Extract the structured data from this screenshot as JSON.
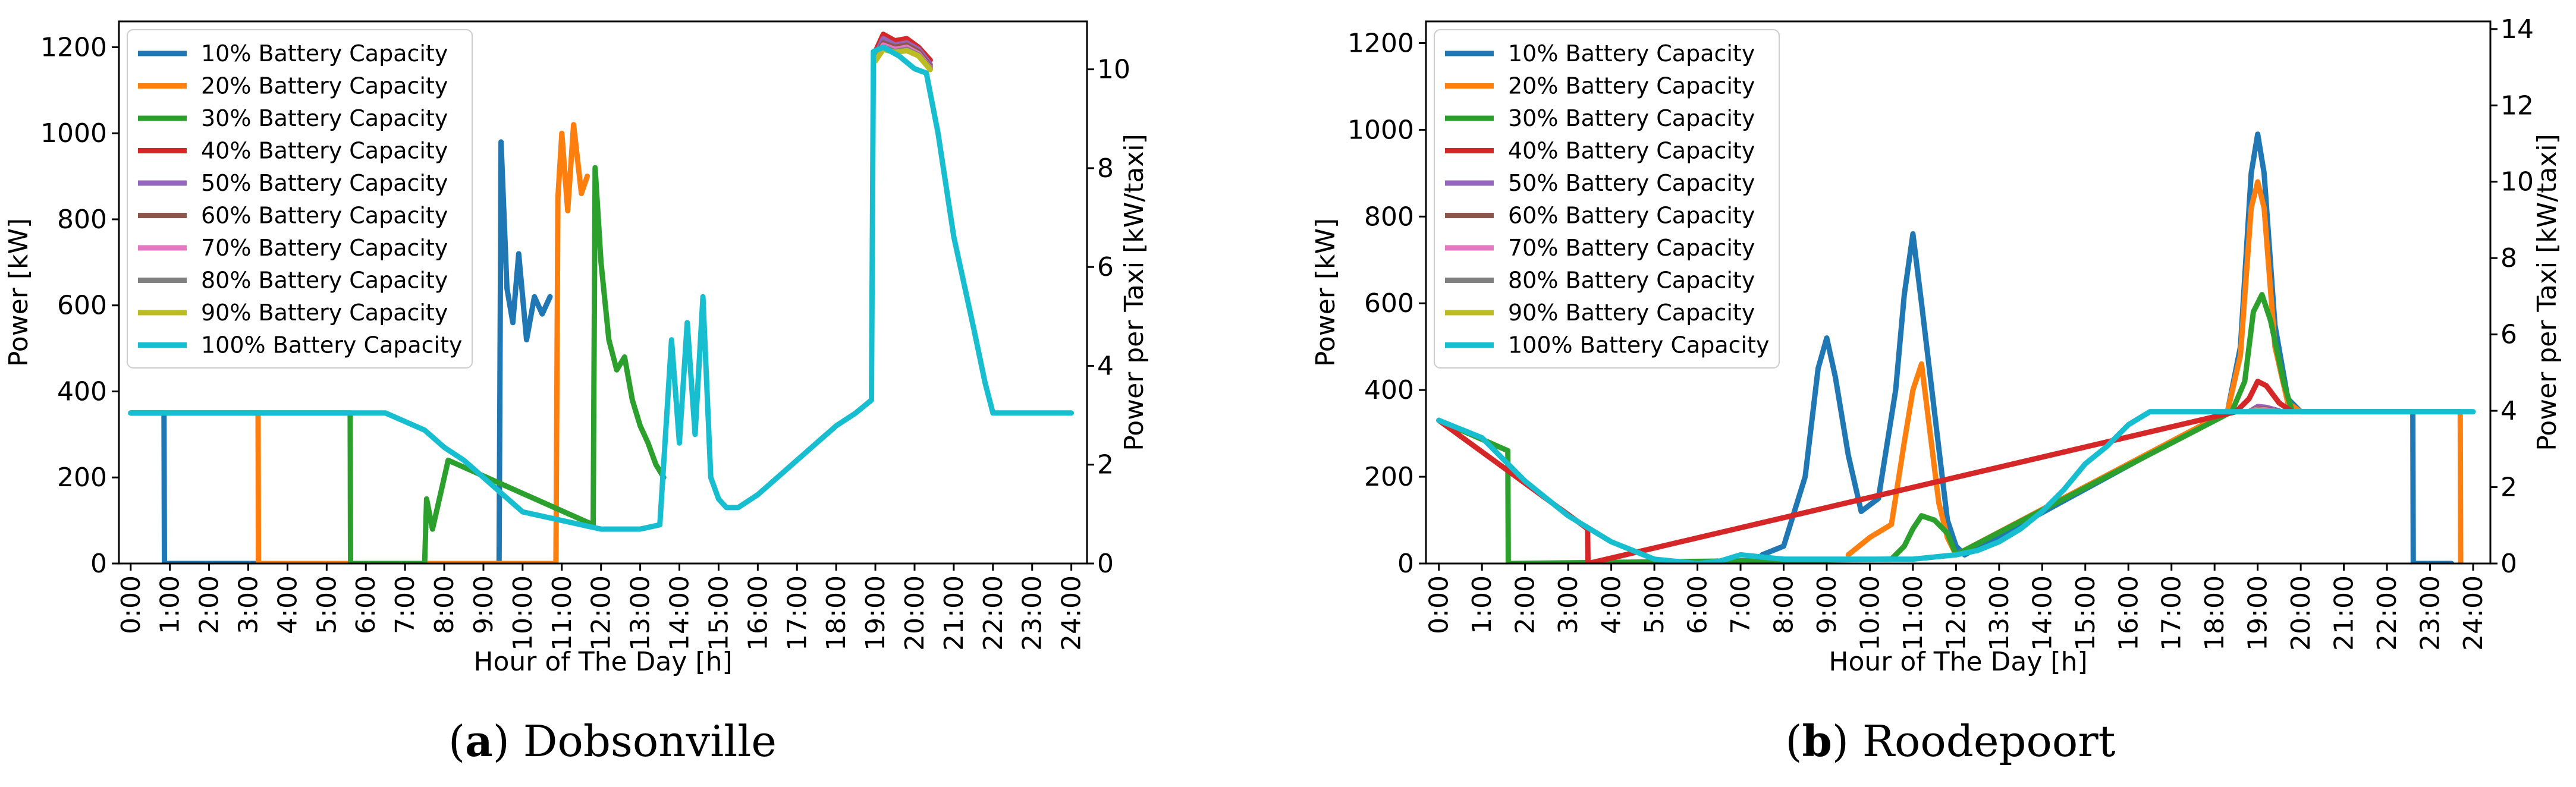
{
  "colors": {
    "10% Battery Capacity": "#1f77b4",
    "20% Battery Capacity": "#ff7f0e",
    "30% Battery Capacity": "#2ca02c",
    "40% Battery Capacity": "#d62728",
    "50% Battery Capacity": "#9467bd",
    "60% Battery Capacity": "#8c564b",
    "70% Battery Capacity": "#e377c2",
    "80% Battery Capacity": "#7f7f7f",
    "90% Battery Capacity": "#bcbd22",
    "100% Battery Capacity": "#17becf"
  },
  "chart_data": [
    {
      "type": "line",
      "caption_letter": "a",
      "caption_name": "Dobsonville",
      "title": "",
      "xlabel": "Hour of The Day [h]",
      "ylabel": "Power [kW]",
      "y2label": "Power per Taxi [kW/taxi]",
      "xlim": [
        -0.3,
        24.4
      ],
      "ylim": [
        0,
        1260
      ],
      "y2lim": [
        0,
        10.97
      ],
      "xticks": [
        "0:00",
        "1:00",
        "2:00",
        "3:00",
        "4:00",
        "5:00",
        "6:00",
        "7:00",
        "8:00",
        "9:00",
        "10:00",
        "11:00",
        "12:00",
        "13:00",
        "14:00",
        "15:00",
        "16:00",
        "17:00",
        "18:00",
        "19:00",
        "20:00",
        "21:00",
        "22:00",
        "23:00",
        "24:00"
      ],
      "yticks": [
        "0",
        "200",
        "400",
        "600",
        "800",
        "1000",
        "1200"
      ],
      "y2ticks": [
        "0",
        "2",
        "4",
        "6",
        "8",
        "10"
      ],
      "legend": "upper-left",
      "series": [
        {
          "name": "10% Battery Capacity",
          "x": [
            0,
            0.85,
            0.86,
            9.4,
            9.45,
            9.6,
            9.75,
            9.9,
            10.1,
            10.3,
            10.5,
            10.7
          ],
          "y": [
            350,
            350,
            0,
            0,
            980,
            640,
            560,
            720,
            520,
            620,
            580,
            620
          ]
        },
        {
          "name": "20% Battery Capacity",
          "x": [
            0,
            3.25,
            3.26,
            10.85,
            10.9,
            11.0,
            11.15,
            11.3,
            11.5,
            11.65
          ],
          "y": [
            350,
            350,
            0,
            0,
            850,
            1000,
            820,
            1020,
            860,
            900
          ]
        },
        {
          "name": "30% Battery Capacity",
          "x": [
            0,
            5.6,
            5.61,
            7.5,
            7.55,
            7.7,
            7.9,
            8.1,
            11.8,
            11.85,
            12.0,
            12.2,
            12.4,
            12.6,
            12.8,
            13.0,
            13.2,
            13.4,
            13.6
          ],
          "y": [
            350,
            350,
            0,
            0,
            150,
            80,
            160,
            240,
            90,
            920,
            700,
            520,
            450,
            480,
            380,
            320,
            280,
            230,
            200
          ]
        },
        {
          "name": "40% Battery Capacity",
          "x": [
            19.0,
            19.2,
            19.5,
            19.8,
            20.1,
            20.4
          ],
          "y": [
            1190,
            1230,
            1215,
            1220,
            1200,
            1170
          ]
        },
        {
          "name": "50% Battery Capacity",
          "x": [
            19.0,
            19.2,
            19.5,
            19.8,
            20.1,
            20.4
          ],
          "y": [
            1180,
            1220,
            1205,
            1210,
            1195,
            1160
          ]
        },
        {
          "name": "60% Battery Capacity",
          "x": [
            19.0,
            19.2,
            19.5,
            19.8,
            20.1,
            20.4
          ],
          "y": [
            1175,
            1210,
            1200,
            1205,
            1190,
            1155
          ]
        },
        {
          "name": "70% Battery Capacity",
          "x": [
            19.0,
            19.2,
            19.5,
            19.8,
            20.1,
            20.4
          ],
          "y": [
            1172,
            1205,
            1195,
            1200,
            1185,
            1152
          ]
        },
        {
          "name": "80% Battery Capacity",
          "x": [
            19.0,
            19.2,
            19.5,
            19.8,
            20.1,
            20.4
          ],
          "y": [
            1170,
            1200,
            1190,
            1195,
            1182,
            1150
          ]
        },
        {
          "name": "90% Battery Capacity",
          "x": [
            19.0,
            19.2,
            19.5,
            19.8,
            20.1,
            20.4
          ],
          "y": [
            1168,
            1195,
            1188,
            1192,
            1180,
            1148
          ]
        },
        {
          "name": "100% Battery Capacity",
          "x": [
            0,
            6.5,
            7.0,
            7.5,
            8.0,
            8.5,
            9.0,
            9.5,
            10.0,
            10.5,
            11.0,
            11.5,
            12.0,
            12.5,
            13.0,
            13.5,
            13.8,
            14.0,
            14.2,
            14.4,
            14.6,
            14.8,
            15.0,
            15.2,
            15.5,
            16.0,
            16.5,
            17.0,
            17.5,
            18.0,
            18.5,
            18.9,
            18.95,
            19.2,
            19.6,
            20.0,
            20.3,
            20.6,
            21.0,
            21.5,
            21.8,
            22.0,
            22.5,
            23.0,
            24.0
          ],
          "y": [
            350,
            350,
            330,
            310,
            270,
            240,
            200,
            160,
            120,
            110,
            100,
            90,
            80,
            80,
            80,
            90,
            520,
            280,
            560,
            300,
            620,
            200,
            150,
            130,
            130,
            160,
            200,
            240,
            280,
            320,
            350,
            380,
            1190,
            1200,
            1180,
            1150,
            1140,
            1000,
            760,
            550,
            420,
            350,
            350,
            350,
            350
          ]
        }
      ]
    },
    {
      "type": "line",
      "caption_letter": "b",
      "caption_name": "Roodepoort",
      "title": "",
      "xlabel": "Hour of The Day [h]",
      "ylabel": "Power [kW]",
      "y2label": "Power per Taxi [kW/taxi]",
      "xlim": [
        -0.3,
        24.4
      ],
      "ylim": [
        0,
        1250
      ],
      "y2lim": [
        0,
        14.2
      ],
      "xticks": [
        "0:00",
        "1:00",
        "2:00",
        "3:00",
        "4:00",
        "5:00",
        "6:00",
        "7:00",
        "8:00",
        "9:00",
        "10:00",
        "11:00",
        "12:00",
        "13:00",
        "14:00",
        "15:00",
        "16:00",
        "17:00",
        "18:00",
        "19:00",
        "20:00",
        "21:00",
        "22:00",
        "23:00",
        "24:00"
      ],
      "yticks": [
        "0",
        "200",
        "400",
        "600",
        "800",
        "1000",
        "1200"
      ],
      "y2ticks": [
        "0",
        "2",
        "4",
        "6",
        "8",
        "10",
        "12",
        "14"
      ],
      "legend": "upper-left",
      "series": [
        {
          "name": "10% Battery Capacity",
          "x": [
            7.5,
            8.0,
            8.5,
            8.8,
            9.0,
            9.2,
            9.5,
            9.8,
            10.2,
            10.6,
            10.8,
            11.0,
            11.2,
            11.5,
            11.8,
            12.0,
            12.2,
            18.3,
            18.6,
            18.85,
            19.0,
            19.15,
            19.4,
            19.7,
            20.0,
            21.0,
            22.0,
            22.6,
            22.61,
            23.5
          ],
          "y": [
            20,
            40,
            200,
            450,
            520,
            430,
            250,
            120,
            150,
            400,
            620,
            760,
            600,
            350,
            100,
            40,
            20,
            350,
            500,
            900,
            990,
            900,
            550,
            380,
            350,
            350,
            350,
            350,
            0,
            0
          ]
        },
        {
          "name": "20% Battery Capacity",
          "x": [
            9.5,
            10.0,
            10.5,
            10.8,
            11.0,
            11.2,
            11.4,
            11.6,
            11.8,
            12.0,
            18.3,
            18.6,
            18.85,
            19.0,
            19.15,
            19.4,
            19.7,
            20.0,
            21.0,
            22.0,
            23.0,
            23.7,
            23.71
          ],
          "y": [
            20,
            60,
            90,
            280,
            400,
            460,
            300,
            140,
            60,
            20,
            350,
            480,
            820,
            880,
            820,
            500,
            370,
            350,
            350,
            350,
            350,
            350,
            0
          ]
        },
        {
          "name": "30% Battery Capacity",
          "x": [
            0,
            1.6,
            1.61,
            10.5,
            10.8,
            11.0,
            11.2,
            11.5,
            11.8,
            12.0,
            18.4,
            18.7,
            18.9,
            19.1,
            19.3,
            19.6,
            19.8
          ],
          "y": [
            330,
            260,
            0,
            10,
            40,
            80,
            110,
            100,
            70,
            20,
            350,
            420,
            580,
            620,
            560,
            420,
            350
          ]
        },
        {
          "name": "40% Battery Capacity",
          "x": [
            0,
            3.45,
            3.46,
            18.5,
            18.8,
            19.0,
            19.2,
            19.5,
            19.8
          ],
          "y": [
            330,
            80,
            0,
            350,
            380,
            420,
            410,
            370,
            350
          ]
        },
        {
          "name": "50% Battery Capacity",
          "x": [
            18.8,
            19.0,
            19.2,
            19.5
          ],
          "y": [
            350,
            362,
            360,
            352
          ]
        },
        {
          "name": "60% Battery Capacity",
          "x": [
            18.8,
            19.0,
            19.2,
            19.5
          ],
          "y": [
            350,
            358,
            356,
            350
          ]
        },
        {
          "name": "70% Battery Capacity",
          "x": [
            18.8,
            19.0,
            19.2,
            19.5
          ],
          "y": [
            350,
            356,
            354,
            350
          ]
        },
        {
          "name": "80% Battery Capacity",
          "x": [
            18.8,
            19.0,
            19.2,
            19.5
          ],
          "y": [
            350,
            354,
            352,
            350
          ]
        },
        {
          "name": "90% Battery Capacity",
          "x": [
            18.8,
            19.0,
            19.2,
            19.5
          ],
          "y": [
            350,
            352,
            351,
            350
          ]
        },
        {
          "name": "100% Battery Capacity",
          "x": [
            0,
            1.0,
            1.5,
            2.0,
            2.5,
            3.0,
            3.5,
            4.0,
            4.5,
            5.0,
            5.5,
            6.0,
            6.5,
            7.0,
            7.5,
            8.0,
            9.0,
            10.0,
            11.0,
            12.0,
            12.5,
            13.0,
            13.5,
            14.0,
            14.5,
            15.0,
            15.5,
            16.0,
            16.5,
            17.0,
            18.0,
            19.0,
            20.0,
            21.0,
            22.0,
            23.0,
            24.0
          ],
          "y": [
            330,
            290,
            240,
            190,
            150,
            110,
            80,
            50,
            30,
            10,
            5,
            0,
            5,
            20,
            15,
            10,
            10,
            10,
            10,
            20,
            30,
            50,
            80,
            120,
            170,
            230,
            270,
            320,
            350,
            350,
            350,
            350,
            350,
            350,
            350,
            350,
            350
          ]
        }
      ]
    }
  ]
}
